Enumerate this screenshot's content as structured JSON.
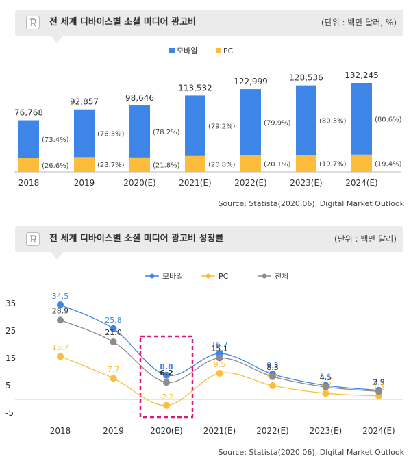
{
  "chart1": {
    "title": "전 세계 디바이스별 소셜 미디어 광고비",
    "unit": "(단위 : 백만 달러, %)",
    "source": "Source: Statista(2020.06), Digital Market Outlook",
    "legend": [
      {
        "name": "모바일",
        "color": "#3d85e6"
      },
      {
        "name": "PC",
        "color": "#fbbd3b"
      }
    ]
  },
  "chart2": {
    "title": "전 세계 디바이스별 소셜 미디어 광고비 성장률",
    "unit": "(단위 : 백만 달러)",
    "source": "Source: Statista(2020.06), Digital Market Outlook",
    "legend": [
      {
        "name": "모바일",
        "color": "#3d85e6"
      },
      {
        "name": "PC",
        "color": "#fbbd3b"
      },
      {
        "name": "전체",
        "color": "#8c8c8c"
      }
    ]
  },
  "chart_data": [
    {
      "type": "bar",
      "stacked": true,
      "title": "전 세계 디바이스별 소셜 미디어 광고비",
      "categories": [
        "2018",
        "2019",
        "2020(E)",
        "2021(E)",
        "2022(E)",
        "2023(E)",
        "2024(E)"
      ],
      "totals": [
        "76,768",
        "92,857",
        "98,646",
        "113,532",
        "122,999",
        "128,536",
        "132,245"
      ],
      "total_values": [
        76768,
        92857,
        98646,
        113532,
        122999,
        128536,
        132245
      ],
      "series": [
        {
          "name": "모바일",
          "color": "#3d85e6",
          "share_pct": [
            73.4,
            76.3,
            78.2,
            79.2,
            79.9,
            80.3,
            80.6
          ],
          "labels": [
            "(73.4%)",
            "(76.3%)",
            "(78.2%)",
            "(79.2%)",
            "(79.9%)",
            "(80.3%)",
            "(80.6%)"
          ]
        },
        {
          "name": "PC",
          "color": "#fbbd3b",
          "share_pct": [
            26.6,
            23.7,
            21.8,
            20.8,
            20.1,
            19.7,
            19.4
          ],
          "labels": [
            "(26.6%)",
            "(23.7%)",
            "(21.8%)",
            "(20.8%)",
            "(20.1%)",
            "(19.7%)",
            "(19.4%)"
          ]
        }
      ],
      "legend_position": "top"
    },
    {
      "type": "line",
      "title": "전 세계 디바이스별 소셜 미디어 광고비 성장률",
      "categories": [
        "2018",
        "2019",
        "2020(E)",
        "2021(E)",
        "2022(E)",
        "2023(E)",
        "2024(E)"
      ],
      "yticks": [
        "35",
        "25",
        "15",
        "5",
        "-5"
      ],
      "ytick_values": [
        35,
        25,
        15,
        5,
        -5
      ],
      "ylim": [
        -5,
        35
      ],
      "series": [
        {
          "name": "모바일",
          "color": "#3d85e6",
          "values": [
            34.5,
            25.8,
            8.8,
            16.7,
            9.2,
            5.1,
            3.3
          ],
          "labels": [
            "34.5",
            "25.8",
            "8.8",
            "16.7",
            "9.2",
            "5.1",
            "3.3"
          ]
        },
        {
          "name": "PC",
          "color": "#fbbd3b",
          "values": [
            15.7,
            7.7,
            -2.2,
            9.5,
            5.0,
            2.2,
            1.3
          ],
          "labels": [
            "15.7",
            "7.7",
            "-2.2",
            "9.5",
            "5.0",
            "2.2",
            "1.3"
          ]
        },
        {
          "name": "전체",
          "color": "#8c8c8c",
          "values": [
            28.9,
            21.0,
            6.2,
            15.1,
            8.3,
            4.5,
            2.9
          ],
          "labels": [
            "28.9",
            "21.0",
            "6.2",
            "15.1",
            "8.3",
            "4.5",
            "2.9"
          ]
        }
      ],
      "highlight_category": "2020(E)",
      "highlight_color": "#d9197a",
      "legend_position": "top"
    }
  ]
}
